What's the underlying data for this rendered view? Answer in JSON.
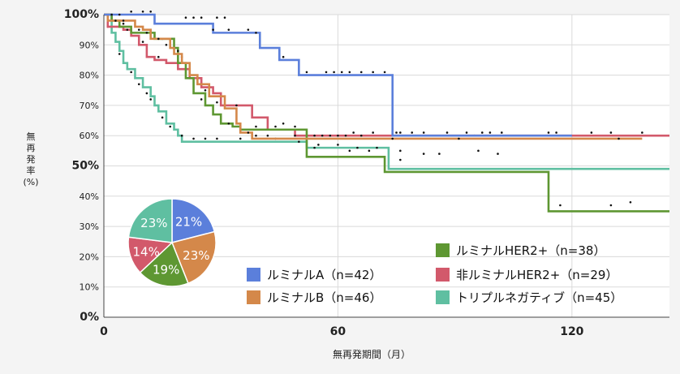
{
  "chart_data": {
    "type": "line",
    "subtype": "kaplan-meier",
    "title": "",
    "xlabel": "無再発期間（月）",
    "ylabel": "無再発率(%)",
    "xlim": [
      0,
      145
    ],
    "ylim": [
      0,
      100
    ],
    "x_ticks": [
      0,
      60,
      120
    ],
    "y_ticks": [
      0,
      10,
      20,
      30,
      40,
      50,
      60,
      70,
      80,
      90,
      100
    ],
    "y_tick_labels": [
      "0%",
      "10%",
      "20%",
      "30%",
      "40%",
      "50%",
      "60%",
      "70%",
      "80%",
      "90%",
      "100%"
    ],
    "grid": true,
    "legend_position": "bottom-right",
    "series": [
      {
        "name": "ルミナルA（n=42）",
        "color": "#5b7fdb",
        "steps": [
          [
            0,
            100
          ],
          [
            13,
            97
          ],
          [
            28,
            94
          ],
          [
            40,
            89
          ],
          [
            45,
            85
          ],
          [
            50,
            80
          ],
          [
            74,
            60
          ],
          [
            120,
            60
          ]
        ],
        "censor": [
          [
            2,
            100
          ],
          [
            4,
            100
          ],
          [
            7,
            101
          ],
          [
            10,
            101
          ],
          [
            12,
            101
          ],
          [
            21,
            99
          ],
          [
            23,
            99
          ],
          [
            25,
            99
          ],
          [
            29,
            99
          ],
          [
            31,
            99
          ],
          [
            28,
            95
          ],
          [
            32,
            95
          ],
          [
            37,
            95
          ],
          [
            39,
            94
          ],
          [
            46,
            86
          ],
          [
            52,
            81
          ],
          [
            57,
            81
          ],
          [
            59,
            81
          ],
          [
            61,
            81
          ],
          [
            63,
            81
          ],
          [
            66,
            81
          ],
          [
            69,
            81
          ],
          [
            72,
            81
          ],
          [
            76,
            61
          ],
          [
            79,
            61
          ],
          [
            82,
            61
          ],
          [
            93,
            61
          ],
          [
            97,
            61
          ],
          [
            102,
            61
          ],
          [
            114,
            61
          ],
          [
            116,
            61
          ]
        ]
      },
      {
        "name": "ルミナルB（n=46）",
        "color": "#d4884a",
        "steps": [
          [
            0,
            100
          ],
          [
            1,
            98
          ],
          [
            8,
            96
          ],
          [
            10,
            95
          ],
          [
            12,
            92
          ],
          [
            17,
            89
          ],
          [
            18,
            87
          ],
          [
            20,
            84
          ],
          [
            22,
            80
          ],
          [
            24,
            77
          ],
          [
            27,
            73
          ],
          [
            31,
            69
          ],
          [
            34,
            64
          ],
          [
            35,
            61
          ],
          [
            38,
            59
          ],
          [
            138,
            59
          ]
        ],
        "censor": [
          [
            3,
            98
          ],
          [
            5,
            98
          ],
          [
            14,
            92
          ],
          [
            16,
            90
          ],
          [
            19,
            88
          ],
          [
            26,
            75
          ],
          [
            29,
            71
          ],
          [
            37,
            61
          ],
          [
            42,
            60
          ],
          [
            49,
            60
          ],
          [
            56,
            60
          ],
          [
            60,
            60
          ],
          [
            66,
            60
          ],
          [
            74,
            59
          ],
          [
            91,
            59
          ],
          [
            132,
            59
          ]
        ]
      },
      {
        "name": "ルミナルHER2+（n=38）",
        "color": "#5e9732",
        "steps": [
          [
            0,
            100
          ],
          [
            2,
            98
          ],
          [
            4,
            96
          ],
          [
            7,
            94
          ],
          [
            13,
            92
          ],
          [
            18,
            89
          ],
          [
            19,
            84
          ],
          [
            21,
            79
          ],
          [
            23,
            74
          ],
          [
            26,
            70
          ],
          [
            28,
            67
          ],
          [
            30,
            64
          ],
          [
            33,
            63
          ],
          [
            35,
            62
          ],
          [
            48,
            62
          ],
          [
            52,
            53
          ],
          [
            72,
            48
          ],
          [
            114,
            35
          ],
          [
            145,
            35
          ]
        ],
        "censor": [
          [
            5,
            97
          ],
          [
            9,
            95
          ],
          [
            11,
            94
          ],
          [
            15,
            92
          ],
          [
            20,
            86
          ],
          [
            25,
            72
          ],
          [
            32,
            64
          ],
          [
            39,
            63
          ],
          [
            44,
            63
          ],
          [
            49,
            63
          ],
          [
            54,
            56
          ],
          [
            63,
            55
          ],
          [
            68,
            55
          ],
          [
            76,
            55
          ],
          [
            82,
            54
          ],
          [
            86,
            54
          ],
          [
            96,
            55
          ],
          [
            101,
            54
          ],
          [
            117,
            37
          ],
          [
            130,
            37
          ],
          [
            135,
            38
          ]
        ]
      },
      {
        "name": "非ルミナルHER2+（n=29）",
        "color": "#d2596b",
        "steps": [
          [
            0,
            100
          ],
          [
            1,
            96
          ],
          [
            5,
            95
          ],
          [
            7,
            93
          ],
          [
            9,
            90
          ],
          [
            11,
            86
          ],
          [
            13,
            85
          ],
          [
            16,
            84
          ],
          [
            19,
            82
          ],
          [
            22,
            79
          ],
          [
            25,
            76
          ],
          [
            28,
            74
          ],
          [
            30,
            70
          ],
          [
            38,
            66
          ],
          [
            42,
            62
          ],
          [
            49,
            60
          ],
          [
            145,
            60
          ]
        ],
        "censor": [
          [
            3,
            98
          ],
          [
            6,
            95
          ],
          [
            10,
            91
          ],
          [
            14,
            86
          ],
          [
            24,
            79
          ],
          [
            27,
            76
          ],
          [
            34,
            70
          ],
          [
            46,
            64
          ],
          [
            54,
            60
          ],
          [
            58,
            60
          ],
          [
            62,
            60
          ],
          [
            64,
            61
          ],
          [
            69,
            61
          ],
          [
            75,
            61
          ],
          [
            88,
            61
          ],
          [
            95,
            60
          ],
          [
            99,
            61
          ],
          [
            125,
            61
          ],
          [
            130,
            61
          ],
          [
            138,
            61
          ]
        ]
      },
      {
        "name": "トリプルネガティブ（n=45）",
        "color": "#5fbfa1",
        "steps": [
          [
            0,
            100
          ],
          [
            2,
            94
          ],
          [
            3,
            91
          ],
          [
            4,
            88
          ],
          [
            5,
            84
          ],
          [
            6,
            82
          ],
          [
            8,
            79
          ],
          [
            10,
            76
          ],
          [
            12,
            73
          ],
          [
            13,
            70
          ],
          [
            14,
            68
          ],
          [
            16,
            64
          ],
          [
            18,
            62
          ],
          [
            19,
            60
          ],
          [
            20,
            58
          ],
          [
            48,
            58
          ],
          [
            52,
            56
          ],
          [
            73,
            49
          ],
          [
            145,
            49
          ]
        ],
        "censor": [
          [
            1,
            96
          ],
          [
            4,
            87
          ],
          [
            7,
            81
          ],
          [
            9,
            77
          ],
          [
            11,
            74
          ],
          [
            12,
            72
          ],
          [
            15,
            66
          ],
          [
            17,
            63
          ],
          [
            20,
            60
          ],
          [
            23,
            59
          ],
          [
            26,
            59
          ],
          [
            29,
            59
          ],
          [
            35,
            59
          ],
          [
            39,
            60
          ],
          [
            44,
            59
          ],
          [
            50,
            58
          ],
          [
            55,
            57
          ],
          [
            60,
            57
          ],
          [
            65,
            56
          ],
          [
            70,
            56
          ],
          [
            76,
            52
          ]
        ]
      }
    ],
    "pie": {
      "slices": [
        {
          "label": "21%",
          "value": 21,
          "color": "#5b7fdb"
        },
        {
          "label": "23%",
          "value": 23,
          "color": "#d4884a"
        },
        {
          "label": "19%",
          "value": 19,
          "color": "#5e9732"
        },
        {
          "label": "14%",
          "value": 14,
          "color": "#d2596b"
        },
        {
          "label": "23%",
          "value": 23,
          "color": "#5fbfa1"
        }
      ]
    }
  }
}
